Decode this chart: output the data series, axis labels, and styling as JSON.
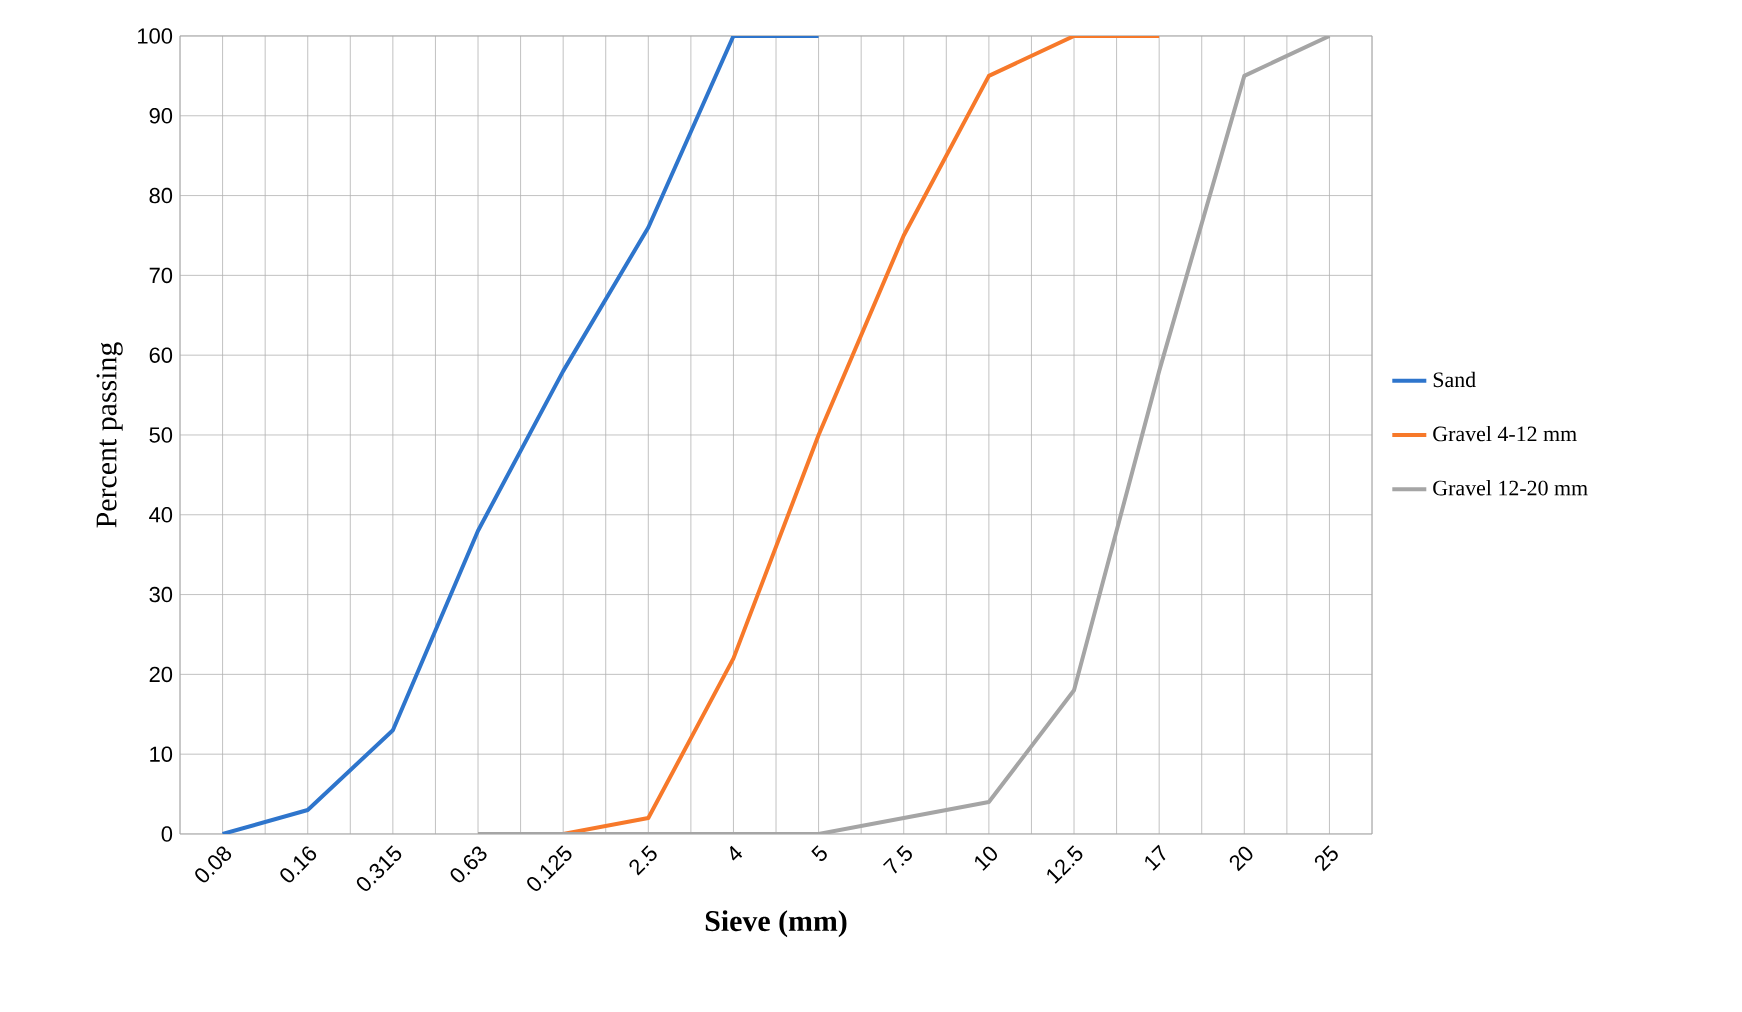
{
  "chart_data": {
    "type": "line",
    "xlabel": "Sieve (mm)",
    "ylabel": "Percent passing",
    "categories": [
      "0.08",
      "0.16",
      "0.315",
      "0.63",
      "0.125",
      "2.5",
      "4",
      "5",
      "7.5",
      "10",
      "12.5",
      "17",
      "20",
      "25"
    ],
    "series": [
      {
        "name": "Sand",
        "color": "#2e75cc",
        "values": [
          0,
          3,
          13,
          38,
          58,
          76,
          100,
          100,
          null,
          null,
          null,
          null,
          null,
          null
        ]
      },
      {
        "name": "Gravel 4-12 mm",
        "color": "#f7792a",
        "values": [
          null,
          null,
          null,
          0,
          0,
          2,
          22,
          50,
          75,
          95,
          100,
          100,
          null,
          null
        ]
      },
      {
        "name": "Gravel 12-20 mm",
        "color": "#a5a5a5",
        "values": [
          null,
          null,
          null,
          0,
          0,
          0,
          0,
          0,
          2,
          4,
          18,
          58,
          95,
          100
        ]
      }
    ],
    "ylim": [
      0,
      100
    ],
    "yticks": [
      0,
      10,
      20,
      30,
      40,
      50,
      60,
      70,
      80,
      90,
      100
    ],
    "grid": true,
    "legend": "right",
    "marker": "none",
    "line_style": "solid"
  }
}
